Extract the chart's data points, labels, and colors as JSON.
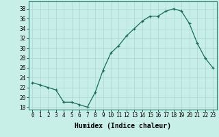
{
  "x": [
    0,
    1,
    2,
    3,
    4,
    5,
    6,
    7,
    8,
    9,
    10,
    11,
    12,
    13,
    14,
    15,
    16,
    17,
    18,
    19,
    20,
    21,
    22,
    23
  ],
  "y": [
    23,
    22.5,
    22,
    21.5,
    19,
    19,
    18.5,
    18,
    21,
    25.5,
    29,
    30.5,
    32.5,
    34,
    35.5,
    36.5,
    36.5,
    37.5,
    38,
    37.5,
    35,
    31,
    28,
    26
  ],
  "line_color": "#1a6b5a",
  "marker": "+",
  "marker_color": "#1a6b5a",
  "bg_color": "#c8eee8",
  "grid_color": "#aad8d0",
  "xlabel": "Humidex (Indice chaleur)",
  "ylabel_ticks": [
    18,
    20,
    22,
    24,
    26,
    28,
    30,
    32,
    34,
    36,
    38
  ],
  "xlim": [
    -0.5,
    23.5
  ],
  "ylim": [
    17.5,
    39.5
  ],
  "xtick_labels": [
    "0",
    "1",
    "2",
    "3",
    "4",
    "5",
    "6",
    "7",
    "8",
    "9",
    "10",
    "11",
    "12",
    "13",
    "14",
    "15",
    "16",
    "17",
    "18",
    "19",
    "20",
    "21",
    "22",
    "23"
  ],
  "axis_fontsize": 6.5,
  "tick_fontsize": 5.5,
  "xlabel_fontsize": 7.0
}
